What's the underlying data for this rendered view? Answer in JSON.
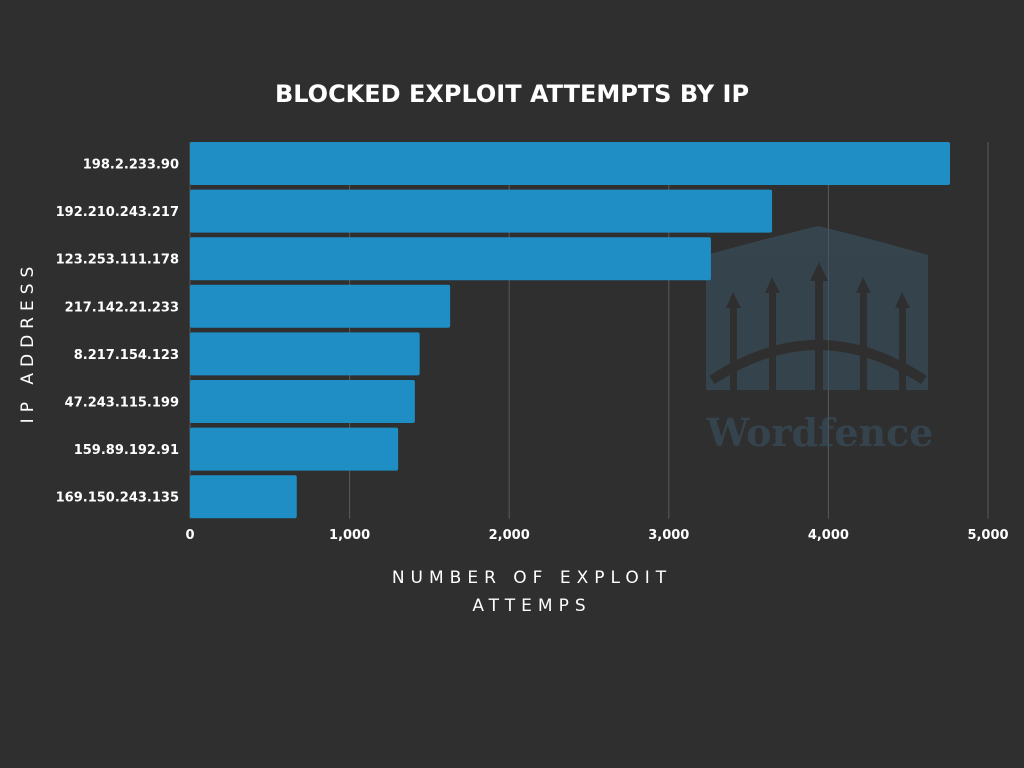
{
  "chart_data": {
    "type": "bar",
    "orientation": "horizontal",
    "title": "BLOCKED EXPLOIT ATTEMPTS BY IP",
    "xlabel_lines": [
      "NUMBER OF EXPLOIT",
      "ATTEMPS"
    ],
    "ylabel": "IP ADDRESS",
    "categories": [
      "198.2.233.90",
      "192.210.243.217",
      "123.253.111.178",
      "217.142.21.233",
      "8.217.154.123",
      "47.243.115.199",
      "159.89.192.91",
      "169.150.243.135"
    ],
    "values": [
      4762,
      3647,
      3264,
      1630,
      1439,
      1409,
      1304,
      669
    ],
    "xlim": [
      0,
      5000
    ],
    "xticks": [
      0,
      1000,
      2000,
      3000,
      4000,
      5000
    ],
    "xtick_labels": [
      "0",
      "1,000",
      "2,000",
      "3,000",
      "4,000",
      "5,000"
    ],
    "grid": "vertical",
    "legend": "none",
    "watermark": "Wordfence",
    "colors": {
      "bar": "#1f8ec5",
      "background": "#2f2f2f",
      "grid": "#5a5a5a",
      "watermark": "#3b5566"
    }
  }
}
